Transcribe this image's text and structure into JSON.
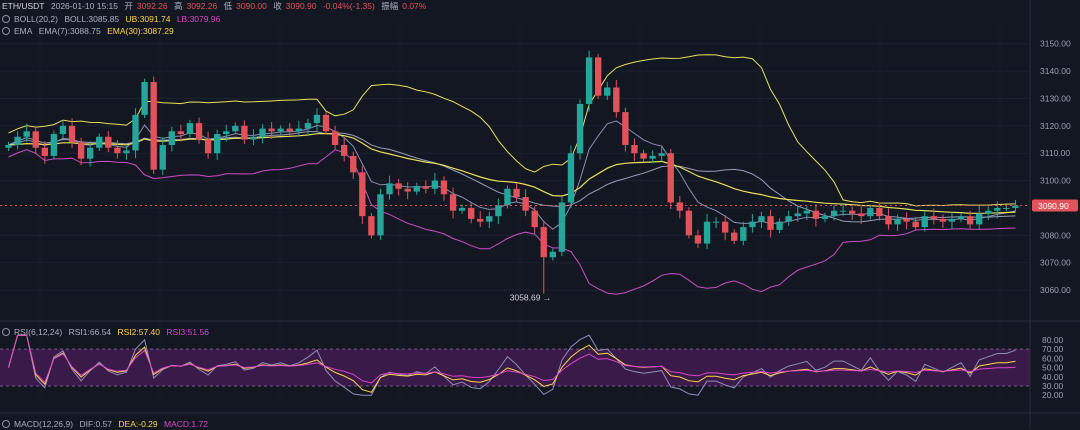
{
  "header": {
    "symbol": "ETH/USDT",
    "datetime": "2026-01-10 15:15",
    "open_label": "开",
    "open": "3092.26",
    "high_label": "高",
    "high": "3092.26",
    "low_label": "低",
    "low": "3090.00",
    "close_label": "收",
    "close": "3090.90",
    "change": "-0.04%(-1.35)",
    "amp_label": "振幅",
    "amp": "0.07%"
  },
  "boll": {
    "name": "BOLL(20,2)",
    "mid": "BOLL:3085.85",
    "ub": "UB:3091.74",
    "lb": "LB:3079.96"
  },
  "ema": {
    "name": "EMA",
    "ema7": "EMA(7):3088.75",
    "ema30": "EMA(30):3087.29"
  },
  "rsi": {
    "name": "RSI(6,12,24)",
    "rsi1": "RSI1:66.54",
    "rsi2": "RSI2:57.40",
    "rsi3": "RSI3:51.56"
  },
  "macd": {
    "name": "MACD(12,26,9)",
    "dif": "DIF:0.57",
    "dea": "DEA:-0.29",
    "macd": "MACD:1.72"
  },
  "price_tag": "3090.90",
  "low_marker": "3058.69 →",
  "colors": {
    "bg": "#131722",
    "up": "#26a69a",
    "down": "#e2525a",
    "boll_band": "#e6e05a",
    "boll_mid": "#9a9cb8",
    "lb_band": "#c94fc2",
    "ema_fast": "#8a8fb0",
    "ema_slow": "#e6e05a",
    "rsi_zone": "#5a1e6a",
    "rsi1": "#8f8fb8",
    "rsi2": "#ffd54a",
    "rsi3": "#d946c8"
  },
  "chart_data": [
    {
      "type": "candlestick",
      "title": "ETH/USDT",
      "y_ticks": [
        "3150.00",
        "3140.00",
        "3130.00",
        "3120.00",
        "3110.00",
        "3100.00",
        "3090.00",
        "3080.00",
        "3070.00",
        "3060.00"
      ],
      "ylim": [
        3052,
        3155
      ],
      "close": [
        3113,
        3116,
        3118,
        3112,
        3109,
        3117,
        3120,
        3114,
        3108,
        3112,
        3116,
        3112,
        3110,
        3111,
        3124,
        3136,
        3104,
        3113,
        3118,
        3117,
        3121,
        3115,
        3110,
        3117,
        3118,
        3120,
        3115,
        3116,
        3119,
        3118,
        3119,
        3118,
        3119,
        3121,
        3124,
        3118,
        3113,
        3109,
        3103,
        3087,
        3080,
        3095,
        3099,
        3097,
        3096,
        3098,
        3097,
        3100,
        3095,
        3089,
        3090,
        3086,
        3085,
        3087,
        3091,
        3097,
        3094,
        3089,
        3083,
        3072,
        3074,
        3092,
        3110,
        3128,
        3145,
        3131,
        3134,
        3125,
        3113,
        3110,
        3108,
        3109,
        3110,
        3092,
        3089,
        3080,
        3077,
        3085,
        3085,
        3081,
        3078,
        3083,
        3085,
        3087,
        3082,
        3085,
        3087,
        3088,
        3089,
        3086,
        3087,
        3089,
        3089,
        3088,
        3087,
        3090,
        3087,
        3084,
        3086,
        3085,
        3083,
        3087,
        3086,
        3085,
        3086,
        3087,
        3084,
        3088,
        3089,
        3090,
        3090,
        3090.9
      ],
      "x_label_points": [
        {
          "i": 59,
          "value": 3058.69,
          "label": "3058.69"
        }
      ],
      "last_price": 3090.9
    },
    {
      "type": "line",
      "title": "RSI(6,12,24)",
      "y_ticks": [
        "80.00",
        "70.00",
        "60.00",
        "50.00",
        "40.00",
        "30.00",
        "20.00"
      ],
      "ylim": [
        17,
        82
      ],
      "series": [
        {
          "name": "RSI1",
          "last": 66.54
        },
        {
          "name": "RSI2",
          "last": 57.4
        },
        {
          "name": "RSI3",
          "last": 51.56
        }
      ]
    }
  ]
}
